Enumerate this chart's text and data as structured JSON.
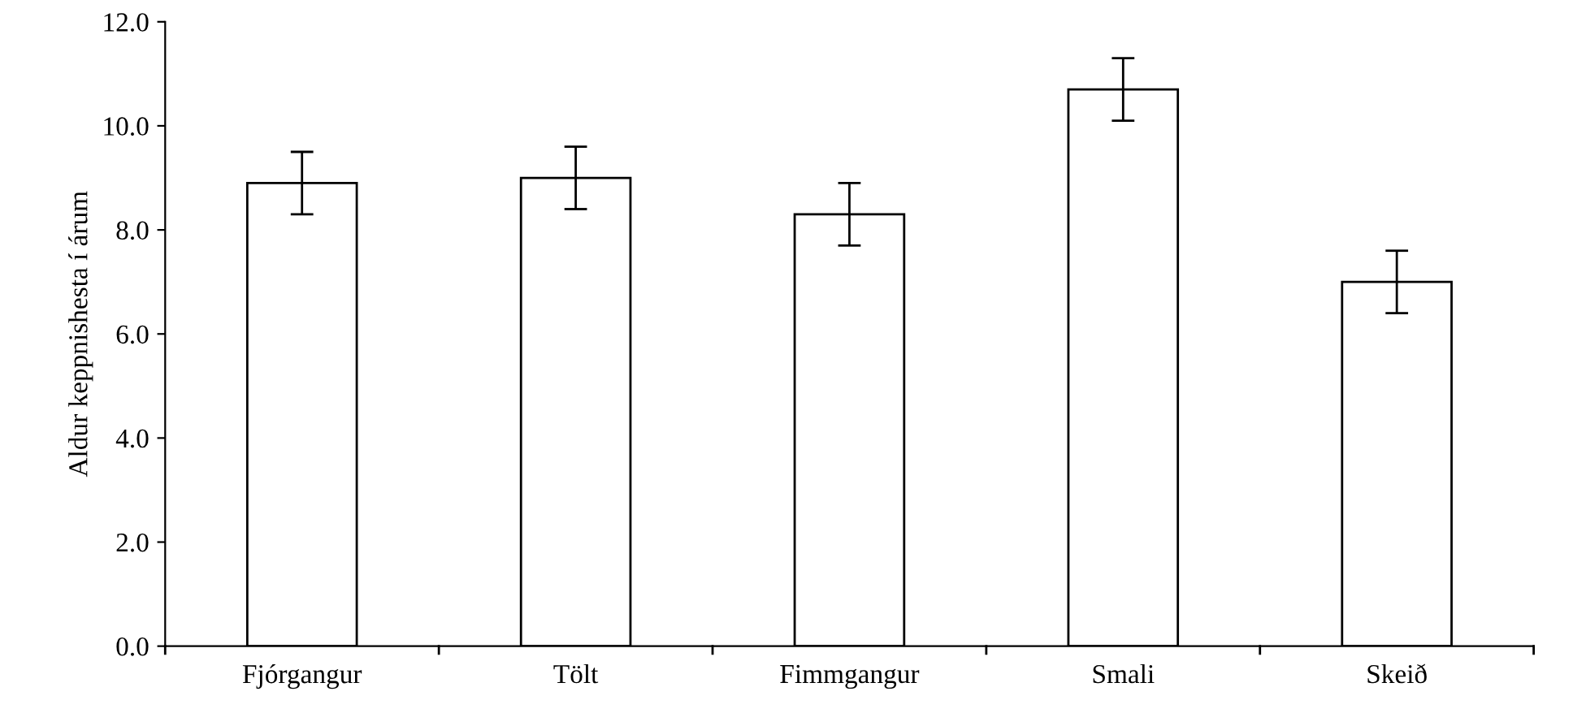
{
  "chart_data": {
    "type": "bar",
    "ylabel": "Aldur keppnishesta í árum",
    "categories": [
      "Fjórgangur",
      "Tölt",
      "Fimmgangur",
      "Smali",
      "Skeið"
    ],
    "values": [
      8.9,
      9.0,
      8.3,
      10.7,
      7.0
    ],
    "errors": [
      0.6,
      0.6,
      0.6,
      0.6,
      0.6
    ],
    "color": "#ffffff",
    "ylim": [
      0,
      12
    ],
    "yticks": [
      {
        "value": 0,
        "label": "0.0"
      },
      {
        "value": 2,
        "label": "2.0"
      },
      {
        "value": 4,
        "label": "4.0"
      },
      {
        "value": 6,
        "label": "6.0"
      },
      {
        "value": 8,
        "label": "8.0"
      },
      {
        "value": 10,
        "label": "10.0"
      },
      {
        "value": 12,
        "label": "12.0"
      }
    ],
    "grid": false,
    "legend": false
  }
}
